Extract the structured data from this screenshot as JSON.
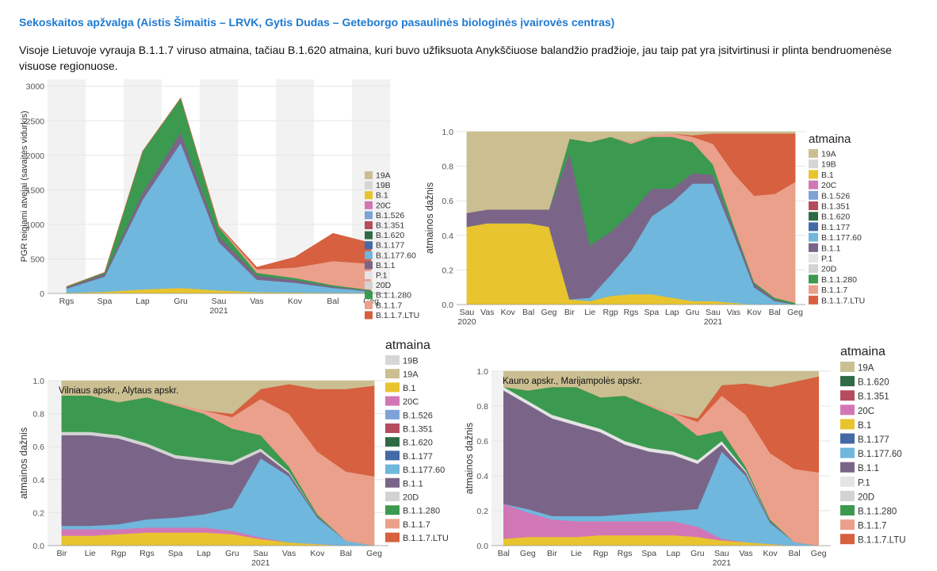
{
  "heading": "Sekoskaitos apžvalga (Aistis Šimaitis – LRVK, Gytis Dudas – Geteborgo pasaulinės biologinės įvairovės centras)",
  "intro": "Visoje Lietuvoje vyrauja B.1.1.7 viruso atmaina, tačiau B.1.620 atmaina, kuri buvo užfiksuota Anykščiuose balandžio pradžioje, jau taip pat yra įsitvirtinusi ir plinta bendruomenėse visuose regionuose.",
  "colors": {
    "19A": "#cbbf92",
    "19B": "#d6d6d6",
    "B.1": "#e8c42e",
    "20C": "#d277b5",
    "B.1.526": "#7ea2d8",
    "B.1.351": "#b34d5e",
    "B.1.620": "#2e6b45",
    "B.1.177": "#436aa6",
    "B.1.177.60": "#6fb7dc",
    "B.1.1": "#7a6588",
    "P.1": "#e4e4e4",
    "20D": "#d3d3d3",
    "B.1.1.280": "#3b9a4f",
    "B.1.1.7": "#eaa08b",
    "B.1.1.7.LTU": "#d6603f"
  },
  "chart_data": [
    {
      "type": "area",
      "title": "",
      "ylabel": "PGR teigiami atvejai (savaitės vidurkis)",
      "xlabel": "",
      "x": [
        "Rgs",
        "Spa",
        "Lap",
        "Gru",
        "Sau",
        "Vas",
        "Kov",
        "Bal",
        "Geg"
      ],
      "x_sub": "2021",
      "yticks": [
        "0",
        "500",
        "1000",
        "1500",
        "2000",
        "2500",
        "3000"
      ],
      "ylim": [
        0,
        3100
      ],
      "legend_title": "",
      "legend": [
        "19A",
        "19B",
        "B.1",
        "20C",
        "B.1.526",
        "B.1.351",
        "B.1.620",
        "B.1.177",
        "B.1.177.60",
        "B.1.1",
        "P.1",
        "20D",
        "B.1.1.280",
        "B.1.1.7",
        "B.1.1.7.LTU"
      ],
      "series": [
        {
          "name": "B.1",
          "values": [
            10,
            25,
            60,
            80,
            45,
            20,
            15,
            10,
            10
          ]
        },
        {
          "name": "B.1.177.60",
          "values": [
            60,
            220,
            1300,
            2100,
            700,
            180,
            140,
            70,
            20
          ]
        },
        {
          "name": "B.1.1",
          "values": [
            20,
            40,
            100,
            150,
            80,
            60,
            40,
            20,
            10
          ]
        },
        {
          "name": "B.1.1.280",
          "values": [
            10,
            20,
            600,
            500,
            140,
            40,
            30,
            20,
            10
          ]
        },
        {
          "name": "B.1.1.7",
          "values": [
            0,
            0,
            0,
            0,
            10,
            50,
            150,
            350,
            380
          ]
        },
        {
          "name": "B.1.1.7.LTU",
          "values": [
            0,
            0,
            0,
            0,
            5,
            30,
            150,
            400,
            300
          ]
        }
      ]
    },
    {
      "type": "area",
      "title": "",
      "ylabel": "atmainos dažnis",
      "xlabel": "",
      "x": [
        "Sau",
        "Vas",
        "Kov",
        "Bal",
        "Geg",
        "Bir",
        "Lie",
        "Rgp",
        "Rgs",
        "Spa",
        "Lap",
        "Gru",
        "Sau",
        "Vas",
        "Kov",
        "Bal",
        "Geg"
      ],
      "x_sub": [
        "2020",
        "2021"
      ],
      "yticks": [
        "0.0",
        "0.2",
        "0.4",
        "0.6",
        "0.8",
        "1.0"
      ],
      "ylim": [
        0,
        1
      ],
      "legend_title": "atmaina",
      "legend": [
        "19A",
        "19B",
        "B.1",
        "20C",
        "B.1.526",
        "B.1.351",
        "B.1.620",
        "B.1.177",
        "B.1.177.60",
        "B.1.1",
        "P.1",
        "20D",
        "B.1.1.280",
        "B.1.1.7",
        "B.1.1.7.LTU"
      ],
      "series": [
        {
          "name": "B.1",
          "values": [
            0.45,
            0.47,
            0.47,
            0.47,
            0.45,
            0.03,
            0.02,
            0.05,
            0.06,
            0.06,
            0.04,
            0.02,
            0.02,
            0.01,
            0.0,
            0.0,
            0.0
          ]
        },
        {
          "name": "B.1.177.60",
          "values": [
            0.0,
            0.0,
            0.0,
            0.0,
            0.0,
            0.0,
            0.02,
            0.12,
            0.25,
            0.45,
            0.55,
            0.68,
            0.68,
            0.4,
            0.1,
            0.02,
            0.0
          ]
        },
        {
          "name": "B.1.1",
          "values": [
            0.08,
            0.08,
            0.08,
            0.08,
            0.1,
            0.85,
            0.3,
            0.25,
            0.22,
            0.16,
            0.08,
            0.06,
            0.05,
            0.03,
            0.02,
            0.01,
            0.0
          ]
        },
        {
          "name": "B.1.1.280",
          "values": [
            0.0,
            0.0,
            0.0,
            0.0,
            0.0,
            0.08,
            0.6,
            0.55,
            0.4,
            0.3,
            0.3,
            0.18,
            0.06,
            0.02,
            0.01,
            0.01,
            0.01
          ]
        },
        {
          "name": "B.1.1.7",
          "values": [
            0.0,
            0.0,
            0.0,
            0.0,
            0.0,
            0.0,
            0.0,
            0.0,
            0.01,
            0.01,
            0.02,
            0.03,
            0.12,
            0.3,
            0.5,
            0.6,
            0.7
          ]
        },
        {
          "name": "B.1.1.7.LTU",
          "values": [
            0.0,
            0.0,
            0.0,
            0.0,
            0.0,
            0.0,
            0.0,
            0.0,
            0.0,
            0.0,
            0.0,
            0.01,
            0.06,
            0.23,
            0.36,
            0.35,
            0.28
          ]
        },
        {
          "name": "19A",
          "values": [
            0.47,
            0.45,
            0.45,
            0.45,
            0.45,
            0.04,
            0.06,
            0.03,
            0.06,
            0.02,
            0.01,
            0.02,
            0.01,
            0.01,
            0.01,
            0.01,
            0.01
          ]
        }
      ]
    },
    {
      "type": "area",
      "title": "",
      "annotation": "Vilniaus apskr., Alytaus apskr.",
      "ylabel": "atmainos dažnis",
      "xlabel": "",
      "x": [
        "Bir",
        "Lie",
        "Rgp",
        "Rgs",
        "Spa",
        "Lap",
        "Gru",
        "Sau",
        "Vas",
        "Kov",
        "Bal",
        "Geg"
      ],
      "x_sub": "2021",
      "yticks": [
        "0.0",
        "0.2",
        "0.4",
        "0.6",
        "0.8",
        "1.0"
      ],
      "ylim": [
        0,
        1
      ],
      "legend_title": "atmaina",
      "legend": [
        "19B",
        "19A",
        "B.1",
        "20C",
        "B.1.526",
        "B.1.351",
        "B.1.620",
        "B.1.177",
        "B.1.177.60",
        "B.1.1",
        "20D",
        "B.1.1.280",
        "B.1.1.7",
        "B.1.1.7.LTU"
      ],
      "series": [
        {
          "name": "B.1",
          "values": [
            0.06,
            0.06,
            0.07,
            0.08,
            0.08,
            0.08,
            0.07,
            0.04,
            0.02,
            0.01,
            0.0,
            0.0
          ]
        },
        {
          "name": "20C",
          "values": [
            0.04,
            0.04,
            0.03,
            0.03,
            0.03,
            0.03,
            0.02,
            0.01,
            0.0,
            0.0,
            0.0,
            0.0
          ]
        },
        {
          "name": "B.1.177.60",
          "values": [
            0.02,
            0.02,
            0.03,
            0.05,
            0.06,
            0.08,
            0.14,
            0.48,
            0.4,
            0.16,
            0.03,
            0.0
          ]
        },
        {
          "name": "B.1.1",
          "values": [
            0.55,
            0.55,
            0.52,
            0.44,
            0.36,
            0.32,
            0.26,
            0.04,
            0.02,
            0.01,
            0.0,
            0.0
          ]
        },
        {
          "name": "20D",
          "values": [
            0.02,
            0.02,
            0.02,
            0.02,
            0.02,
            0.02,
            0.02,
            0.02,
            0.01,
            0.0,
            0.0,
            0.0
          ]
        },
        {
          "name": "B.1.1.280",
          "values": [
            0.22,
            0.22,
            0.2,
            0.28,
            0.3,
            0.27,
            0.2,
            0.08,
            0.03,
            0.01,
            0.0,
            0.0
          ]
        },
        {
          "name": "B.1.1.7",
          "values": [
            0.0,
            0.0,
            0.0,
            0.0,
            0.01,
            0.02,
            0.07,
            0.22,
            0.32,
            0.38,
            0.42,
            0.42
          ]
        },
        {
          "name": "B.1.1.7.LTU",
          "values": [
            0.0,
            0.0,
            0.0,
            0.0,
            0.0,
            0.0,
            0.02,
            0.06,
            0.18,
            0.38,
            0.5,
            0.55
          ]
        },
        {
          "name": "19A",
          "values": [
            0.09,
            0.09,
            0.13,
            0.1,
            0.14,
            0.18,
            0.2,
            0.05,
            0.02,
            0.05,
            0.05,
            0.03
          ]
        }
      ]
    },
    {
      "type": "area",
      "title": "",
      "annotation": "Kauno apskr., Marijampolės apskr.",
      "ylabel": "atmainos dažnis",
      "xlabel": "",
      "x": [
        "Bal",
        "Geg",
        "Bir",
        "Lie",
        "Rgp",
        "Rgs",
        "Spa",
        "Lap",
        "Gru",
        "Sau",
        "Vas",
        "Kov",
        "Bal",
        "Geg"
      ],
      "x_sub": "2021",
      "yticks": [
        "0.0",
        "0.2",
        "0.4",
        "0.6",
        "0.8",
        "1.0"
      ],
      "ylim": [
        0,
        1
      ],
      "legend_title": "atmaina",
      "legend": [
        "19A",
        "B.1.620",
        "B.1.351",
        "20C",
        "B.1",
        "B.1.177",
        "B.1.177.60",
        "B.1.1",
        "P.1",
        "20D",
        "B.1.1.280",
        "B.1.1.7",
        "B.1.1.7.LTU"
      ],
      "series": [
        {
          "name": "B.1",
          "values": [
            0.04,
            0.05,
            0.05,
            0.05,
            0.06,
            0.06,
            0.06,
            0.06,
            0.05,
            0.03,
            0.02,
            0.01,
            0.0,
            0.0
          ]
        },
        {
          "name": "20C",
          "values": [
            0.2,
            0.14,
            0.1,
            0.09,
            0.08,
            0.08,
            0.08,
            0.08,
            0.06,
            0.01,
            0.0,
            0.0,
            0.0,
            0.0
          ]
        },
        {
          "name": "B.1.177.60",
          "values": [
            0.0,
            0.02,
            0.02,
            0.03,
            0.03,
            0.04,
            0.05,
            0.06,
            0.1,
            0.5,
            0.38,
            0.12,
            0.02,
            0.0
          ]
        },
        {
          "name": "B.1.1",
          "values": [
            0.65,
            0.6,
            0.56,
            0.52,
            0.48,
            0.4,
            0.35,
            0.32,
            0.26,
            0.04,
            0.02,
            0.01,
            0.0,
            0.0
          ]
        },
        {
          "name": "P.1",
          "values": [
            0.02,
            0.02,
            0.02,
            0.02,
            0.02,
            0.02,
            0.02,
            0.02,
            0.02,
            0.02,
            0.01,
            0.0,
            0.0,
            0.0
          ]
        },
        {
          "name": "B.1.1.280",
          "values": [
            0.0,
            0.06,
            0.16,
            0.2,
            0.18,
            0.26,
            0.24,
            0.2,
            0.14,
            0.06,
            0.02,
            0.01,
            0.0,
            0.0
          ]
        },
        {
          "name": "B.1.1.7",
          "values": [
            0.0,
            0.0,
            0.0,
            0.0,
            0.0,
            0.0,
            0.01,
            0.02,
            0.08,
            0.2,
            0.3,
            0.38,
            0.42,
            0.42
          ]
        },
        {
          "name": "B.1.1.7.LTU",
          "values": [
            0.0,
            0.0,
            0.0,
            0.0,
            0.0,
            0.0,
            0.0,
            0.0,
            0.02,
            0.06,
            0.18,
            0.38,
            0.5,
            0.55
          ]
        },
        {
          "name": "19A",
          "values": [
            0.09,
            0.11,
            0.09,
            0.09,
            0.15,
            0.14,
            0.19,
            0.24,
            0.27,
            0.08,
            0.07,
            0.09,
            0.06,
            0.03
          ]
        }
      ]
    }
  ]
}
